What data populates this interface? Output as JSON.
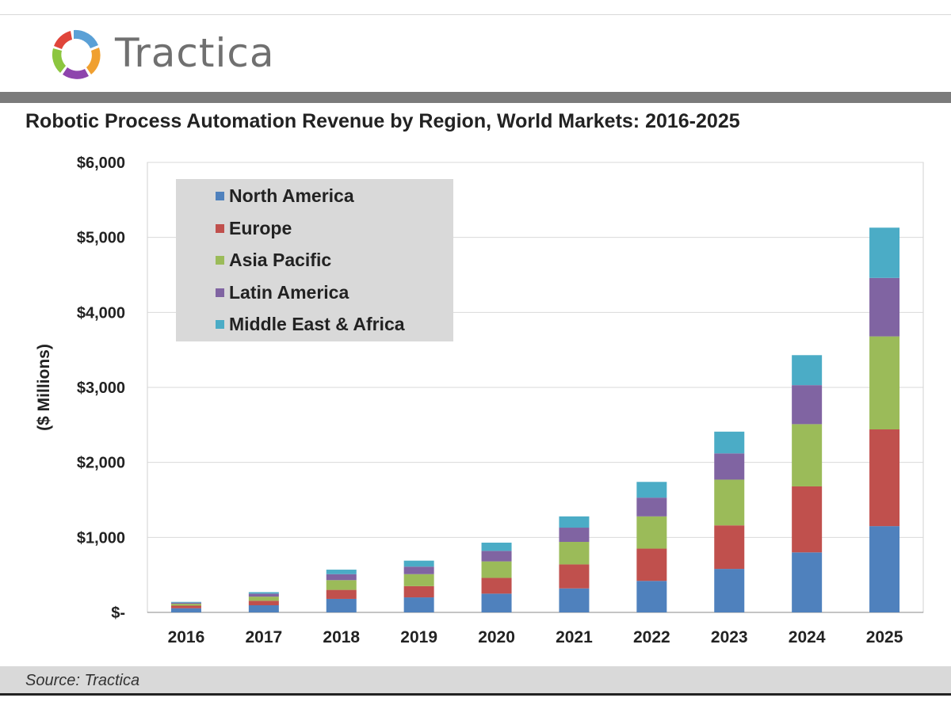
{
  "brand": {
    "name": "Tractica",
    "colors": [
      "#5aa0d6",
      "#f0a030",
      "#8cc63f",
      "#8e44ad",
      "#e0453a"
    ]
  },
  "title": "Robotic Process Automation Revenue by Region, World Markets: 2016-2025",
  "source": "Source: Tractica",
  "chart_data": {
    "type": "bar",
    "stacked": true,
    "title": "Robotic Process Automation Revenue by Region, World Markets: 2016-2025",
    "xlabel": "",
    "ylabel": "($ Millions)",
    "ylim": [
      0,
      6000
    ],
    "yticks": [
      0,
      1000,
      2000,
      3000,
      4000,
      5000,
      6000
    ],
    "ytick_labels": [
      "$-",
      "$1,000",
      "$2,000",
      "$3,000",
      "$4,000",
      "$5,000",
      "$6,000"
    ],
    "grid": true,
    "legend_position": "top-left",
    "categories": [
      "2016",
      "2017",
      "2018",
      "2019",
      "2020",
      "2021",
      "2022",
      "2023",
      "2024",
      "2025"
    ],
    "series": [
      {
        "name": "North America",
        "color": "#4f81bd",
        "values": [
          55,
          95,
          180,
          200,
          250,
          320,
          420,
          580,
          800,
          1150
        ]
      },
      {
        "name": "Europe",
        "color": "#c0504d",
        "values": [
          35,
          60,
          120,
          150,
          210,
          320,
          430,
          580,
          880,
          1290
        ]
      },
      {
        "name": "Asia Pacific",
        "color": "#9bbb59",
        "values": [
          25,
          55,
          130,
          160,
          220,
          300,
          430,
          610,
          830,
          1240
        ]
      },
      {
        "name": "Latin America",
        "color": "#8064a2",
        "values": [
          15,
          40,
          80,
          100,
          140,
          190,
          250,
          350,
          520,
          780
        ]
      },
      {
        "name": "Middle East & Africa",
        "color": "#4bacc6",
        "values": [
          10,
          20,
          60,
          80,
          110,
          150,
          210,
          290,
          400,
          670
        ]
      }
    ]
  }
}
